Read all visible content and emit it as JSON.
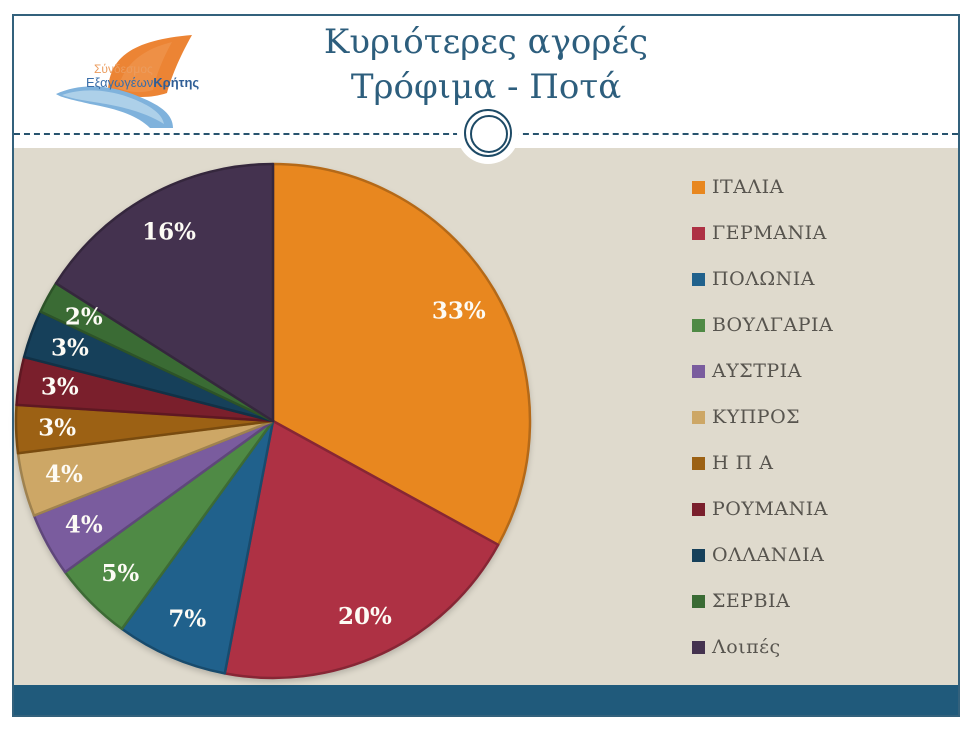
{
  "slide": {
    "title_line1": "Κυριότερες αγορές",
    "title_line2": "Τρόφιμα - Ποτά"
  },
  "logo": {
    "line1": "Σύνδεσμος",
    "line2_regular": "Εξαγωγέων",
    "line2_bold": "Κρήτης"
  },
  "colors": {
    "title": "#2d5e7d",
    "slide_border": "#33617c",
    "chart_background": "#dfdacd",
    "bottom_bar": "#205a7b",
    "legend_text": "#57544e",
    "data_label_text": "#fdfbf5"
  },
  "chart_data": {
    "type": "pie",
    "title": "Κυριότερες αγορές Τρόφιμα - Ποτά",
    "start_angle_deg": 0,
    "direction": "clockwise",
    "legend_position": "right",
    "data_labels_format": "percent",
    "series": [
      {
        "label": "ΙΤΑΛΙΑ",
        "value": 33,
        "display": "33%",
        "color": "#e8871f"
      },
      {
        "label": "ΓΕΡΜΑΝΙΑ",
        "value": 20,
        "display": "20%",
        "color": "#ae3144"
      },
      {
        "label": "ΠΟΛΩΝΙΑ",
        "value": 7,
        "display": "7%",
        "color": "#20618c"
      },
      {
        "label": "ΒΟΥΛΓΑΡΙΑ",
        "value": 5,
        "display": "5%",
        "color": "#4f8a45"
      },
      {
        "label": "ΑΥΣΤΡΙΑ",
        "value": 4,
        "display": "4%",
        "color": "#7a5c9e"
      },
      {
        "label": "ΚΥΠΡΟΣ",
        "value": 4,
        "display": "4%",
        "color": "#cda766"
      },
      {
        "label": "Η Π Α",
        "value": 3,
        "display": "3%",
        "color": "#9c6114"
      },
      {
        "label": "ΡΟΥΜΑΝΙΑ",
        "value": 3,
        "display": "3%",
        "color": "#7a1f2c"
      },
      {
        "label": "ΟΛΛΑΝΔΙΑ",
        "value": 3,
        "display": "3%",
        "color": "#16405a"
      },
      {
        "label": "ΣΕΡΒΙΑ",
        "value": 2,
        "display": "2%",
        "color": "#3a6b34"
      },
      {
        "label": "Λοιπές",
        "value": 16,
        "display": "16%",
        "color": "#44324f"
      }
    ]
  }
}
